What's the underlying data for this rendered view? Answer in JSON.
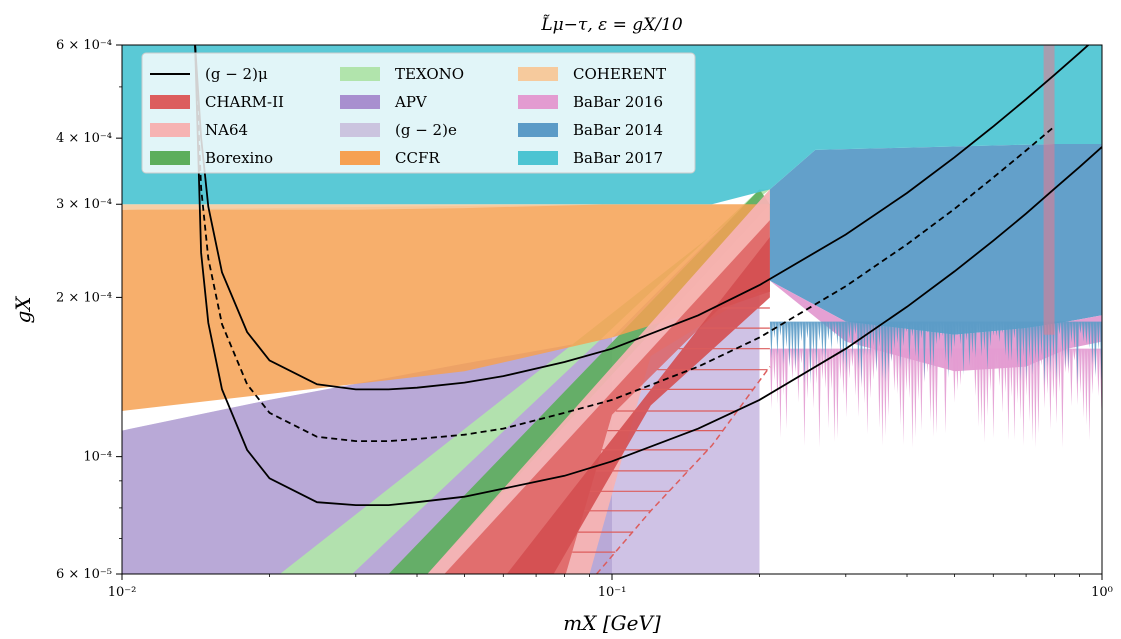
{
  "chart_data": {
    "type": "area",
    "title": "L̃μ−τ, ε = gX/10",
    "xlabel": "mX [GeV]",
    "ylabel": "gX",
    "x_scale": "log",
    "y_scale": "log",
    "xlim": [
      0.01,
      1.0
    ],
    "ylim": [
      6e-05,
      0.0006
    ],
    "x_ticks": [
      {
        "value": 0.01,
        "label": "10⁻²"
      },
      {
        "value": 0.1,
        "label": "10⁻¹"
      },
      {
        "value": 1.0,
        "label": "10⁰"
      }
    ],
    "y_ticks": [
      {
        "value": 6e-05,
        "label": "6 × 10⁻⁵"
      },
      {
        "value": 0.0001,
        "label": "10⁻⁴"
      },
      {
        "value": 0.0002,
        "label": "2 × 10⁻⁴"
      },
      {
        "value": 0.0003,
        "label": "3 × 10⁻⁴"
      },
      {
        "value": 0.0004,
        "label": "4 × 10⁻⁴"
      },
      {
        "value": 0.0006,
        "label": "6 × 10⁻⁴"
      }
    ],
    "legend_position": "upper-left",
    "legend": [
      {
        "label": "(g − 2)μ",
        "kind": "line",
        "color": "#000000"
      },
      {
        "label": "CHARM-II",
        "kind": "patch",
        "color": "#dc5d5d"
      },
      {
        "label": "NA64",
        "kind": "patch",
        "color": "#f6b3b3"
      },
      {
        "label": "Borexino",
        "kind": "patch",
        "color": "#5cae5c"
      },
      {
        "label": "TEXONO",
        "kind": "patch",
        "color": "#b1e4ac"
      },
      {
        "label": "APV",
        "kind": "patch",
        "color": "#a88fcf"
      },
      {
        "label": "(g − 2)e",
        "kind": "patch",
        "color": "#cbc4df"
      },
      {
        "label": "CCFR",
        "kind": "patch",
        "color": "#f6a152"
      },
      {
        "label": "COHERENT",
        "kind": "patch",
        "color": "#f6ca9d"
      },
      {
        "label": "BaBar 2016",
        "kind": "patch",
        "color": "#e39bd1"
      },
      {
        "label": "BaBar 2014",
        "kind": "patch",
        "color": "#5b9bc7"
      },
      {
        "label": "BaBar 2017",
        "kind": "patch",
        "color": "#4cc4d2"
      }
    ],
    "regions": [
      {
        "name": "(g − 2)e",
        "color": "#cbc4df",
        "opacity": 0.95,
        "points": [
          [
            0.01,
            6e-05
          ],
          [
            0.01,
            0.000112
          ],
          [
            0.02,
            0.000128
          ],
          [
            0.05,
            0.00015
          ],
          [
            0.1,
            0.000168
          ],
          [
            0.1,
            6e-05
          ]
        ]
      },
      {
        "name": "APV",
        "color": "#a88fcf",
        "opacity": 0.55,
        "points": [
          [
            0.01,
            6e-05
          ],
          [
            0.01,
            0.000112
          ],
          [
            0.02,
            0.000128
          ],
          [
            0.05,
            0.00015
          ],
          [
            0.1,
            0.000168
          ],
          [
            0.2,
            0.00032
          ],
          [
            0.2,
            6e-05
          ]
        ]
      },
      {
        "name": "TEXONO",
        "color": "#b1e4ac",
        "opacity": 0.95,
        "points": [
          [
            0.0295,
            6e-05
          ],
          [
            0.2,
            0.00032
          ],
          [
            0.21,
            0.00032
          ],
          [
            0.021,
            6e-05
          ]
        ]
      },
      {
        "name": "Borexino",
        "color": "#5cae5c",
        "opacity": 0.9,
        "points": [
          [
            0.035,
            6e-05
          ],
          [
            0.2,
            0.00032
          ],
          [
            0.21,
            0.0003
          ],
          [
            0.042,
            6e-05
          ]
        ]
      },
      {
        "name": "CCFR",
        "color": "#f6a152",
        "opacity": 0.85,
        "points": [
          [
            0.01,
            0.000122
          ],
          [
            0.05,
            0.000145
          ],
          [
            0.1,
            0.000168
          ],
          [
            0.2,
            0.000205
          ],
          [
            0.21,
            0.000205
          ],
          [
            0.21,
            0.0003
          ],
          [
            0.16,
            0.0003
          ],
          [
            0.1,
            0.0003
          ],
          [
            0.01,
            0.000293
          ]
        ]
      },
      {
        "name": "COHERENT",
        "color": "#f6ca9d",
        "opacity": 0.9,
        "points": [
          [
            0.01,
            0.000293
          ],
          [
            0.03,
            0.000293
          ],
          [
            0.05,
            0.000295
          ],
          [
            0.1,
            0.0003
          ],
          [
            0.1,
            0.0003
          ],
          [
            0.03,
            0.0003
          ],
          [
            0.01,
            0.0003
          ]
        ]
      },
      {
        "name": "NA64",
        "color": "#f6b3b3",
        "opacity": 0.95,
        "points": [
          [
            0.042,
            6e-05
          ],
          [
            0.21,
            0.00032
          ],
          [
            0.21,
            0.000215
          ],
          [
            0.18,
            0.000195
          ],
          [
            0.12,
            0.000155
          ],
          [
            0.09,
            6e-05
          ]
        ]
      },
      {
        "name": "CHARM-II",
        "color": "#dc5d5d",
        "opacity": 0.8,
        "points": [
          [
            0.0455,
            6e-05
          ],
          [
            0.21,
            0.00028
          ],
          [
            0.21,
            0.000205
          ],
          [
            0.165,
            0.00019
          ],
          [
            0.1,
            0.00012
          ],
          [
            0.0805,
            6e-05
          ]
        ]
      },
      {
        "name": "CHARM-II (dark)",
        "color": "#d44e50",
        "opacity": 0.9,
        "points": [
          [
            0.061,
            6e-05
          ],
          [
            0.21,
            0.00026
          ],
          [
            0.21,
            0.0002
          ],
          [
            0.12,
            0.000125
          ],
          [
            0.076,
            6e-05
          ]
        ]
      },
      {
        "name": "BaBar 2014",
        "color": "#5b9bc7",
        "opacity": 0.95,
        "points": [
          [
            0.21,
            0.000215
          ],
          [
            0.3,
            0.00018
          ],
          [
            0.5,
            0.00017
          ],
          [
            0.7,
            0.000175
          ],
          [
            0.85,
            0.00018
          ],
          [
            1.0,
            0.000185
          ],
          [
            1.0,
            0.00039
          ],
          [
            0.8,
            0.00039
          ],
          [
            0.26,
            0.00038
          ],
          [
            0.21,
            0.00032
          ]
        ]
      },
      {
        "name": "BaBar 2016",
        "color": "#e39bd1",
        "opacity": 0.95,
        "points": [
          [
            0.21,
            0.000215
          ],
          [
            0.3,
            0.000165
          ],
          [
            0.5,
            0.000145
          ],
          [
            0.7,
            0.000148
          ],
          [
            0.85,
            0.00016
          ],
          [
            1.0,
            0.000165
          ],
          [
            1.0,
            0.000185
          ],
          [
            0.85,
            0.00018
          ],
          [
            0.7,
            0.000175
          ],
          [
            0.5,
            0.00017
          ],
          [
            0.3,
            0.00018
          ]
        ]
      },
      {
        "name": "BaBar 2017",
        "color": "#4cc4d2",
        "opacity": 0.92,
        "points": [
          [
            0.01,
            0.0003
          ],
          [
            0.1,
            0.0003
          ],
          [
            0.1,
            0.0003
          ],
          [
            0.16,
            0.0003
          ],
          [
            0.21,
            0.00032
          ],
          [
            0.26,
            0.00038
          ],
          [
            0.8,
            0.00039
          ],
          [
            1.0,
            0.00039
          ],
          [
            1.0,
            0.0006
          ],
          [
            0.01,
            0.0006
          ]
        ]
      }
    ],
    "series": [
      {
        "name": "(g − 2)μ",
        "style": "solid",
        "color": "#000000",
        "x": [
          0.0141,
          0.0145,
          0.015,
          0.016,
          0.018,
          0.02,
          0.025,
          0.03,
          0.035,
          0.04,
          0.05,
          0.06,
          0.08,
          0.1,
          0.15,
          0.2,
          0.3,
          0.4,
          0.5,
          0.6,
          0.7,
          0.8,
          0.9,
          1.0
        ],
        "y": [
          0.0006,
          0.000401,
          0.000297,
          0.000223,
          0.000172,
          0.000152,
          0.000137,
          0.000134,
          0.000134,
          0.000135,
          0.000138,
          0.000142,
          0.000151,
          0.00016,
          0.000185,
          0.000211,
          0.000263,
          0.000315,
          0.000368,
          0.000421,
          0.000474,
          0.000527,
          0.00058,
          0.000633
        ]
      },
      {
        "name": "(g − 2)μ",
        "style": "dashed",
        "color": "#000000",
        "x": [
          0.0141,
          0.0145,
          0.015,
          0.016,
          0.018,
          0.02,
          0.025,
          0.03,
          0.035,
          0.04,
          0.05,
          0.06,
          0.08,
          0.1,
          0.15,
          0.2,
          0.3,
          0.4,
          0.5,
          0.6,
          0.7,
          0.8
        ],
        "y": [
          0.0006,
          0.000322,
          0.000237,
          0.000178,
          0.000137,
          0.000121,
          0.000109,
          0.000107,
          0.000107,
          0.000108,
          0.00011,
          0.000113,
          0.000121,
          0.000128,
          0.000148,
          0.000168,
          0.00021,
          0.000252,
          0.000294,
          0.000337,
          0.000379,
          0.000421
        ]
      },
      {
        "name": "(g − 2)μ",
        "style": "solid",
        "color": "#000000",
        "x": [
          0.0141,
          0.0145,
          0.015,
          0.016,
          0.018,
          0.02,
          0.025,
          0.03,
          0.035,
          0.04,
          0.05,
          0.06,
          0.08,
          0.1,
          0.15,
          0.2,
          0.3,
          0.4,
          0.5,
          0.6,
          0.7,
          0.8,
          0.9,
          1.0
        ],
        "y": [
          0.0006,
          0.000243,
          0.000179,
          0.000134,
          0.000103,
          9.1e-05,
          8.2e-05,
          8.1e-05,
          8.1e-05,
          8.2e-05,
          8.4e-05,
          8.7e-05,
          9.2e-05,
          9.8e-05,
          0.000113,
          0.000128,
          0.00016,
          0.000192,
          0.000224,
          0.000256,
          0.000288,
          0.000321,
          0.000353,
          0.000385
        ]
      }
    ],
    "hatch": {
      "color": "#dc5d5d",
      "y_levels": [
        6.6e-05,
        7.2e-05,
        7.9e-05,
        8.6e-05,
        9.4e-05,
        0.000103,
        0.000112,
        0.000122,
        0.000134,
        0.000146,
        0.00016,
        0.000175,
        0.000191,
        0.000209
      ],
      "left_boundary": [
        [
          0.0805,
          6e-05
        ],
        [
          0.1,
          0.00012
        ],
        [
          0.165,
          0.00019
        ],
        [
          0.21,
          0.000205
        ]
      ],
      "dashed_boundary": [
        [
          0.093,
          6e-05
        ],
        [
          0.12,
          7.9e-05
        ],
        [
          0.16,
          0.000105
        ],
        [
          0.21,
          0.000148
        ]
      ]
    }
  }
}
